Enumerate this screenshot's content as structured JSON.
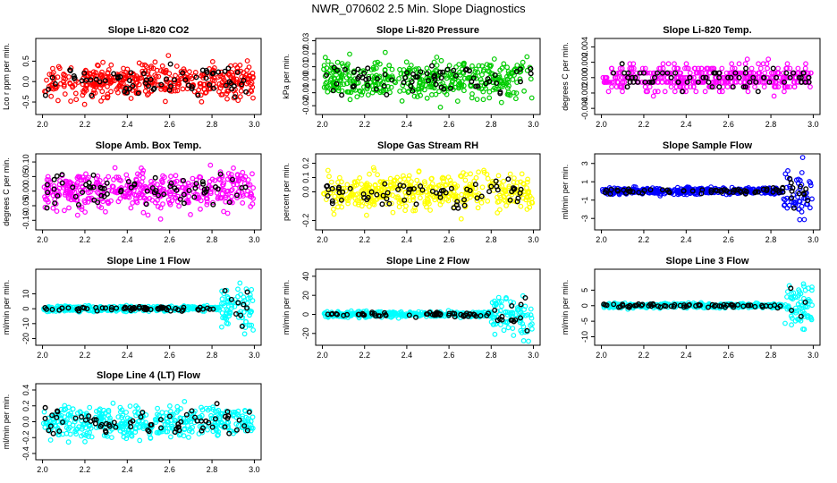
{
  "title": "NWR_070602  2.5 Min. Slope Diagnostics",
  "colors": {
    "red": "#ff0000",
    "green": "#00cc00",
    "magenta": "#ff00ff",
    "yellow": "#ffff00",
    "blue": "#0000ff",
    "cyan": "#00ffff",
    "black": "#000000"
  },
  "chart_data": [
    {
      "type": "scatter",
      "title": "Slope Li-820 CO2",
      "ylabel": "Lco r ppm per min.",
      "xlim": [
        2.0,
        3.0
      ],
      "ylim": [
        -0.75,
        1.0
      ],
      "xticks": [
        2.0,
        2.2,
        2.4,
        2.6,
        2.8,
        3.0
      ],
      "xtick_labels": [
        "2.0",
        "2.2",
        "2.4",
        "2.6",
        "2.8",
        "3.0"
      ],
      "yticks": [
        -0.5,
        0.0,
        0.5
      ],
      "ytick_labels": [
        "-0.5",
        "0.0",
        "0.5"
      ],
      "color": "red",
      "spread": 0.3,
      "seed": 11,
      "tail": null
    },
    {
      "type": "scatter",
      "title": "Slope Li-820 Pressure",
      "ylabel": "kPa per min.",
      "xlim": [
        2.0,
        3.0
      ],
      "ylim": [
        -0.025,
        0.03
      ],
      "xticks": [
        2.0,
        2.2,
        2.4,
        2.6,
        2.8,
        3.0
      ],
      "xtick_labels": [
        "2.0",
        "2.2",
        "2.4",
        "2.6",
        "2.8",
        "3.0"
      ],
      "yticks": [
        -0.02,
        -0.01,
        0.0,
        0.01,
        0.02,
        0.03
      ],
      "ytick_labels": [
        "-0.02",
        "-0.01",
        "0.00",
        "0.01",
        "0.02",
        "0.03"
      ],
      "color": "green",
      "spread": 0.01,
      "seed": 23,
      "tail": null
    },
    {
      "type": "scatter",
      "title": "Slope Li-820 Temp.",
      "ylabel": "degrees C per min.",
      "xlim": [
        2.0,
        3.0
      ],
      "ylim": [
        -0.0045,
        0.0048
      ],
      "xticks": [
        2.0,
        2.2,
        2.4,
        2.6,
        2.8,
        3.0
      ],
      "xtick_labels": [
        "2.0",
        "2.2",
        "2.4",
        "2.6",
        "2.8",
        "3.0"
      ],
      "yticks": [
        -0.004,
        -0.002,
        0.0,
        0.002,
        0.004
      ],
      "ytick_labels": [
        "-0.004",
        "-0.002",
        "0.000",
        "0.002",
        "0.004"
      ],
      "color": "magenta",
      "spread": 0.0012,
      "seed": 37,
      "tail": null,
      "quantize": 0.0006
    },
    {
      "type": "scatter",
      "title": "Slope Amb. Box Temp.",
      "ylabel": "degrees C per min.",
      "xlim": [
        2.0,
        3.0
      ],
      "ylim": [
        -0.125,
        0.12
      ],
      "xticks": [
        2.0,
        2.2,
        2.4,
        2.6,
        2.8,
        3.0
      ],
      "xtick_labels": [
        "2.0",
        "2.2",
        "2.4",
        "2.6",
        "2.8",
        "3.0"
      ],
      "yticks": [
        -0.1,
        -0.05,
        0.0,
        0.05,
        0.1
      ],
      "ytick_labels": [
        "-0.10",
        "-0.05",
        "0.00",
        "0.05",
        "0.10"
      ],
      "color": "magenta",
      "spread": 0.045,
      "seed": 41,
      "tail": null
    },
    {
      "type": "scatter",
      "title": "Slope Gas Stream RH",
      "ylabel": "percent per min.",
      "xlim": [
        2.0,
        3.0
      ],
      "ylim": [
        -0.25,
        0.25
      ],
      "xticks": [
        2.0,
        2.2,
        2.4,
        2.6,
        2.8,
        3.0
      ],
      "xtick_labels": [
        "2.0",
        "2.2",
        "2.4",
        "2.6",
        "2.8",
        "3.0"
      ],
      "yticks": [
        -0.2,
        0.0,
        0.1,
        0.2
      ],
      "ytick_labels": [
        "-0.2",
        "0.0",
        "0.1",
        "0.2"
      ],
      "color": "yellow",
      "spread": 0.09,
      "seed": 53,
      "tail": null
    },
    {
      "type": "scatter",
      "title": "Slope Sample Flow",
      "ylabel": "ml/min per min.",
      "xlim": [
        2.0,
        3.0
      ],
      "ylim": [
        -4.0,
        3.8
      ],
      "xticks": [
        2.0,
        2.2,
        2.4,
        2.6,
        2.8,
        3.0
      ],
      "xtick_labels": [
        "2.0",
        "2.2",
        "2.4",
        "2.6",
        "2.8",
        "3.0"
      ],
      "yticks": [
        -3,
        -1,
        1,
        3
      ],
      "ytick_labels": [
        "-3",
        "-1",
        "1",
        "3"
      ],
      "color": "blue",
      "spread": 0.25,
      "seed": 67,
      "tail": {
        "start": 2.86,
        "spread": 2.0
      }
    },
    {
      "type": "scatter",
      "title": "Slope Line 1 Flow",
      "ylabel": "ml/min per min.",
      "xlim": [
        2.0,
        3.0
      ],
      "ylim": [
        -23,
        25
      ],
      "xticks": [
        2.0,
        2.2,
        2.4,
        2.6,
        2.8,
        3.0
      ],
      "xtick_labels": [
        "2.0",
        "2.2",
        "2.4",
        "2.6",
        "2.8",
        "3.0"
      ],
      "yticks": [
        -20,
        -10,
        0,
        10
      ],
      "ytick_labels": [
        "-20",
        "-10",
        "0",
        "10"
      ],
      "color": "cyan",
      "spread": 1.2,
      "seed": 71,
      "tail": {
        "start": 2.84,
        "spread": 12
      }
    },
    {
      "type": "scatter",
      "title": "Slope Line 2 Flow",
      "ylabel": "ml/min per min.",
      "xlim": [
        2.0,
        3.0
      ],
      "ylim": [
        -30,
        45
      ],
      "xticks": [
        2.0,
        2.2,
        2.4,
        2.6,
        2.8,
        3.0
      ],
      "xtick_labels": [
        "2.0",
        "2.2",
        "2.4",
        "2.6",
        "2.8",
        "3.0"
      ],
      "yticks": [
        -20,
        0,
        20,
        40
      ],
      "ytick_labels": [
        "-20",
        "0",
        "20",
        "40"
      ],
      "color": "cyan",
      "spread": 2.0,
      "seed": 83,
      "tail": {
        "start": 2.8,
        "spread": 15
      }
    },
    {
      "type": "scatter",
      "title": "Slope Line 3 Flow",
      "ylabel": "ml/min per min.",
      "xlim": [
        2.0,
        3.0
      ],
      "ylim": [
        -12,
        11
      ],
      "xticks": [
        2.0,
        2.2,
        2.4,
        2.6,
        2.8,
        3.0
      ],
      "xtick_labels": [
        "2.0",
        "2.2",
        "2.4",
        "2.6",
        "2.8",
        "3.0"
      ],
      "yticks": [
        -10,
        -5,
        0,
        5
      ],
      "ytick_labels": [
        "-10",
        "-5",
        "0",
        "5"
      ],
      "color": "cyan",
      "spread": 0.5,
      "seed": 97,
      "tail": {
        "start": 2.86,
        "spread": 5
      }
    },
    {
      "type": "scatter",
      "title": "Slope Line 4 (LT) Flow",
      "ylabel": "ml/min per min.",
      "xlim": [
        2.0,
        3.0
      ],
      "ylim": [
        -0.45,
        0.45
      ],
      "xticks": [
        2.0,
        2.2,
        2.4,
        2.6,
        2.8,
        3.0
      ],
      "xtick_labels": [
        "2.0",
        "2.2",
        "2.4",
        "2.6",
        "2.8",
        "3.0"
      ],
      "yticks": [
        -0.4,
        -0.2,
        0.0,
        0.2,
        0.4
      ],
      "ytick_labels": [
        "-0.4",
        "-0.2",
        "0.0",
        "0.2",
        "0.4"
      ],
      "color": "cyan",
      "spread": 0.14,
      "seed": 101,
      "tail": null
    }
  ]
}
